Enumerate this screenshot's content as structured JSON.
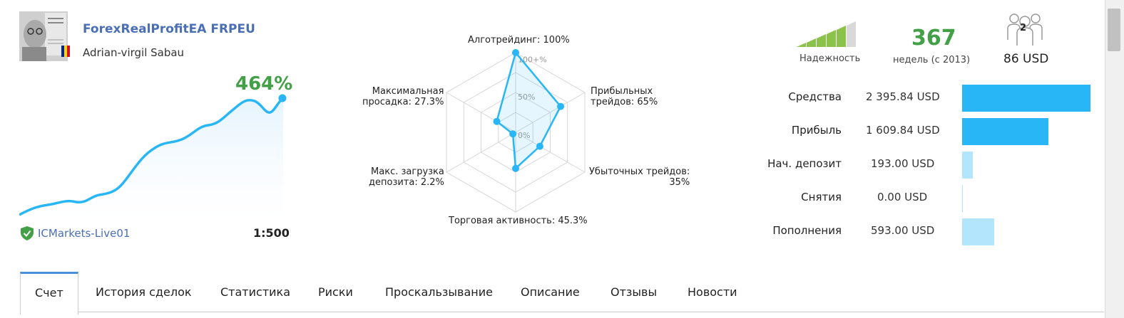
{
  "signal": {
    "name": "ForexRealProfitEA FRPEU",
    "author": "Adrian-virgil Sabau",
    "growth": "464%",
    "broker": "ICMarkets-Live01",
    "leverage": "1:500"
  },
  "radar": {
    "labels": {
      "algo": "Алготрейдинг: 100%",
      "profit_trades": "Прибыльных\nтрейдов: 65%",
      "loss_trades": "Убыточных трейдов:\n35%",
      "activity": "Торговая активность: 45.3%",
      "deposit_load": "Макс. загрузка\nдепозита: 2.2%",
      "drawdown": "Максимальная\nпросадка: 27.3%"
    },
    "scale": {
      "max": "100+%",
      "mid": "50%",
      "min": "0%"
    },
    "values": [
      100,
      65,
      35,
      45.3,
      2.2,
      27.3
    ]
  },
  "stats": {
    "reliability_label": "Надежность",
    "weeks": "367",
    "weeks_label": "недель (с 2013)",
    "subscribers": "2",
    "price": "86 USD"
  },
  "finance": [
    {
      "label": "Средства",
      "value": "2 395.84 USD",
      "amount": 2395.84,
      "color": "#29b6f6"
    },
    {
      "label": "Прибыль",
      "value": "1 609.84 USD",
      "amount": 1609.84,
      "color": "#29b6f6"
    },
    {
      "label": "Нач. депозит",
      "value": "193.00 USD",
      "amount": 193.0,
      "color": "#b3e5fc"
    },
    {
      "label": "Снятия",
      "value": "0.00 USD",
      "amount": 0,
      "color": "#b3e5fc"
    },
    {
      "label": "Пополнения",
      "value": "593.00 USD",
      "amount": 593.0,
      "color": "#b3e5fc"
    }
  ],
  "tabs": [
    "Счет",
    "История сделок",
    "Статистика",
    "Риски",
    "Проскальзывание",
    "Описание",
    "Отзывы",
    "Новости"
  ],
  "colors": {
    "accent": "#29b6f6",
    "green": "#43a047",
    "link": "#4a6fb5"
  }
}
